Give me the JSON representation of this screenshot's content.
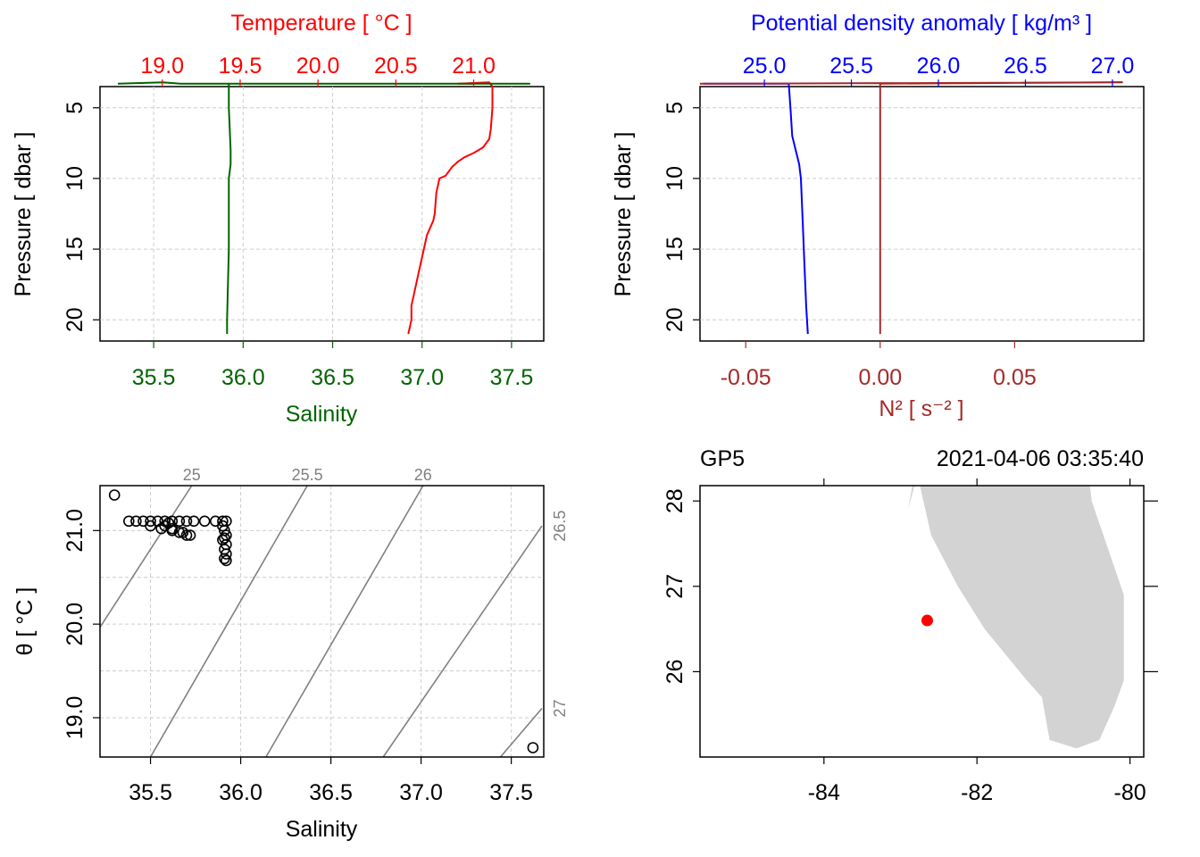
{
  "chart_data": [
    {
      "panel": "top-left",
      "type": "line",
      "title": "",
      "top_axis": {
        "label": "Temperature [ °C ]",
        "ticks": [
          19.0,
          19.5,
          20.0,
          20.5,
          21.0
        ],
        "tick_labels": [
          "19.0",
          "19.5",
          "20.0",
          "20.5",
          "21.0"
        ],
        "range": [
          18.6,
          21.45
        ]
      },
      "bottom_axis": {
        "label": "Salinity",
        "ticks": [
          35.5,
          36.0,
          36.5,
          37.0,
          37.5
        ],
        "tick_labels": [
          "35.5",
          "36.0",
          "36.5",
          "37.0",
          "37.5"
        ],
        "range": [
          35.2,
          37.68
        ]
      },
      "left_axis": {
        "label": "Pressure [ dbar ]",
        "ticks": [
          5,
          10,
          15,
          20
        ],
        "tick_labels": [
          "5",
          "10",
          "15",
          "20"
        ],
        "range": [
          3.5,
          21.5
        ],
        "reversed": true
      },
      "series": [
        {
          "name": "Temperature",
          "axis": "top",
          "color": "#ff0000",
          "x": [
            21.0,
            20.9,
            21.1,
            21.12,
            21.12,
            21.11,
            21.1,
            21.06,
            21.0,
            20.94,
            20.9,
            20.86,
            20.82,
            20.78,
            20.76,
            20.75,
            20.74,
            20.7,
            20.68,
            20.66,
            20.64,
            20.62,
            20.6,
            20.6,
            20.58
          ],
          "y": [
            3.3,
            3.3,
            3.2,
            3.5,
            5.0,
            6.5,
            7.2,
            7.8,
            8.2,
            8.5,
            8.8,
            9.2,
            9.8,
            10.0,
            11.0,
            12.5,
            13.0,
            14.0,
            15.0,
            16.0,
            17.0,
            18.0,
            19.0,
            20.0,
            21.0
          ]
        },
        {
          "name": "Salinity",
          "axis": "bottom",
          "color": "#006400",
          "x": [
            35.3,
            35.55,
            35.65,
            35.95,
            36.2,
            37.5,
            37.6,
            35.92,
            35.92,
            35.93,
            35.93,
            35.92,
            35.92,
            35.91,
            35.91
          ],
          "y": [
            3.3,
            3.2,
            3.3,
            3.3,
            3.3,
            3.3,
            3.3,
            3.3,
            5.0,
            8.0,
            9.0,
            10.0,
            15.0,
            20.0,
            21.0
          ]
        }
      ]
    },
    {
      "panel": "top-right",
      "type": "line",
      "title": "",
      "top_axis": {
        "label": "Potential density anomaly [ kg/m³ ]",
        "ticks": [
          25.0,
          25.5,
          26.0,
          26.5,
          27.0
        ],
        "tick_labels": [
          "25.0",
          "25.5",
          "26.0",
          "26.5",
          "27.0"
        ],
        "range": [
          24.63,
          27.18
        ]
      },
      "bottom_axis": {
        "label": "N² [ s⁻² ]",
        "ticks": [
          -0.05,
          0.0,
          0.05
        ],
        "tick_labels": [
          "-0.05",
          "0.00",
          "0.05"
        ],
        "range": [
          -0.067,
          0.098
        ]
      },
      "left_axis": {
        "label": "Pressure [ dbar ]",
        "ticks": [
          5,
          10,
          15,
          20
        ],
        "tick_labels": [
          "5",
          "10",
          "15",
          "20"
        ],
        "range": [
          3.5,
          21.5
        ],
        "reversed": true
      },
      "series": [
        {
          "name": "Potential density anomaly",
          "axis": "top",
          "color": "#0000ff",
          "x": [
            24.65,
            25.0,
            25.14,
            25.15,
            25.16,
            25.18,
            25.2,
            25.21,
            25.22,
            25.23,
            25.24,
            25.25
          ],
          "y": [
            3.3,
            3.3,
            3.3,
            5.0,
            7.0,
            8.0,
            9.0,
            10.0,
            13.0,
            16.0,
            19.0,
            21.0
          ]
        },
        {
          "name": "N²",
          "axis": "bottom",
          "color": "#a52a2a",
          "x": [
            -0.067,
            0.09,
            0.0,
            0.0,
            0.0
          ],
          "y": [
            3.3,
            3.2,
            3.3,
            10.0,
            21.0
          ]
        }
      ]
    },
    {
      "panel": "bottom-left",
      "type": "scatter",
      "title": "",
      "xlabel": "Salinity",
      "ylabel": "θ [ °C ]",
      "x_ticks": [
        35.5,
        36.0,
        36.5,
        37.0,
        37.5
      ],
      "x_tick_labels": [
        "35.5",
        "36.0",
        "36.5",
        "37.0",
        "37.5"
      ],
      "y_ticks": [
        19.0,
        20.0,
        21.0
      ],
      "y_tick_labels": [
        "19.0",
        "20.0",
        "21.0"
      ],
      "xlim": [
        35.22,
        37.68
      ],
      "ylim": [
        18.58,
        21.48
      ],
      "points": {
        "x": [
          35.3,
          35.38,
          35.42,
          35.46,
          35.5,
          35.54,
          35.58,
          35.62,
          35.66,
          35.7,
          35.5,
          35.56,
          35.62,
          35.68,
          35.72,
          35.74,
          35.8,
          35.86,
          35.9,
          35.92,
          35.9,
          35.91,
          35.92,
          35.91,
          35.9,
          35.92,
          35.91,
          35.92,
          35.91,
          35.92,
          35.58,
          35.62,
          35.66,
          35.7,
          35.6,
          37.62
        ],
        "y": [
          21.38,
          21.1,
          21.1,
          21.1,
          21.1,
          21.1,
          21.1,
          21.1,
          21.1,
          21.1,
          21.05,
          21.02,
          21.0,
          20.98,
          20.95,
          21.1,
          21.1,
          21.1,
          21.1,
          21.1,
          21.05,
          21.0,
          20.95,
          20.92,
          20.9,
          20.85,
          20.8,
          20.75,
          20.7,
          20.68,
          21.05,
          21.02,
          20.98,
          20.95,
          21.08,
          18.68
        ]
      },
      "isopycnals": [
        {
          "label": "25",
          "x1": 35.02,
          "x2": 35.92,
          "y1": 19.3,
          "y2": 22.3
        },
        {
          "label": "25.5",
          "x1": 35.5,
          "x2": 36.48,
          "y1": 18.58,
          "y2": 21.85
        },
        {
          "label": "26",
          "x1": 36.14,
          "x2": 37.08,
          "y1": 18.58,
          "y2": 21.71
        },
        {
          "label": "26.5",
          "x1": 36.79,
          "x2": 37.67,
          "y1": 18.58,
          "y2": 21.05
        },
        {
          "label": "27",
          "x1": 37.44,
          "x2": 37.67,
          "y1": 18.58,
          "y2": 19.1
        }
      ],
      "iso_line_color": "#808080"
    },
    {
      "panel": "bottom-right",
      "type": "map",
      "title": "GP5",
      "datetime": "2021-04-06 03:35:40",
      "x_ticks": [
        -84,
        -82,
        -80
      ],
      "x_tick_labels": [
        "-84",
        "-82",
        "-80"
      ],
      "y_ticks": [
        26,
        27,
        28
      ],
      "y_tick_labels": [
        "26",
        "27",
        "28"
      ],
      "xlim": [
        -85.62,
        -79.82
      ],
      "ylim": [
        25.0,
        28.18
      ],
      "land_color": "#d3d3d3",
      "land_polygon": {
        "lon": [
          -82.8,
          -82.6,
          -82.25,
          -81.9,
          -81.35,
          -81.15,
          -81.05,
          -80.7,
          -80.4,
          -80.2,
          -80.08,
          -80.08,
          -80.5,
          -80.55,
          -82.75,
          -82.9
        ],
        "lat": [
          28.4,
          27.6,
          27.0,
          26.5,
          25.9,
          25.7,
          25.2,
          25.1,
          25.2,
          25.6,
          25.9,
          26.9,
          28.0,
          28.4,
          28.4,
          27.9
        ]
      },
      "station": {
        "lon": -82.65,
        "lat": 26.6,
        "color": "#ff0000"
      }
    }
  ]
}
